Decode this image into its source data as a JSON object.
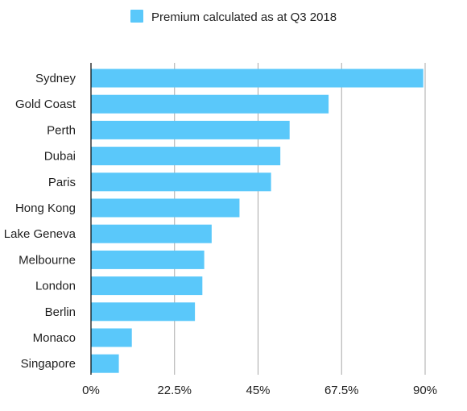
{
  "chart_data": {
    "type": "bar",
    "orientation": "horizontal",
    "categories": [
      "Sydney",
      "Gold Coast",
      "Perth",
      "Dubai",
      "Paris",
      "Hong Kong",
      "Lake Geneva",
      "Melbourne",
      "London",
      "Berlin",
      "Monaco",
      "Singapore"
    ],
    "series": [
      {
        "name": "Premium calculated as at Q3 2018",
        "values": [
          89.5,
          64.0,
          53.5,
          51.0,
          48.5,
          40.0,
          32.5,
          30.5,
          30.0,
          28.0,
          11.0,
          7.5
        ]
      }
    ],
    "xlim": [
      0,
      90
    ],
    "xticks": [
      0,
      22.5,
      45,
      67.5,
      90
    ],
    "xtick_labels": [
      "0%",
      "22.5%",
      "45%",
      "67.5%",
      "90%"
    ],
    "grid": true,
    "legend_position": "top",
    "bar_color": "#5ac8fa"
  }
}
